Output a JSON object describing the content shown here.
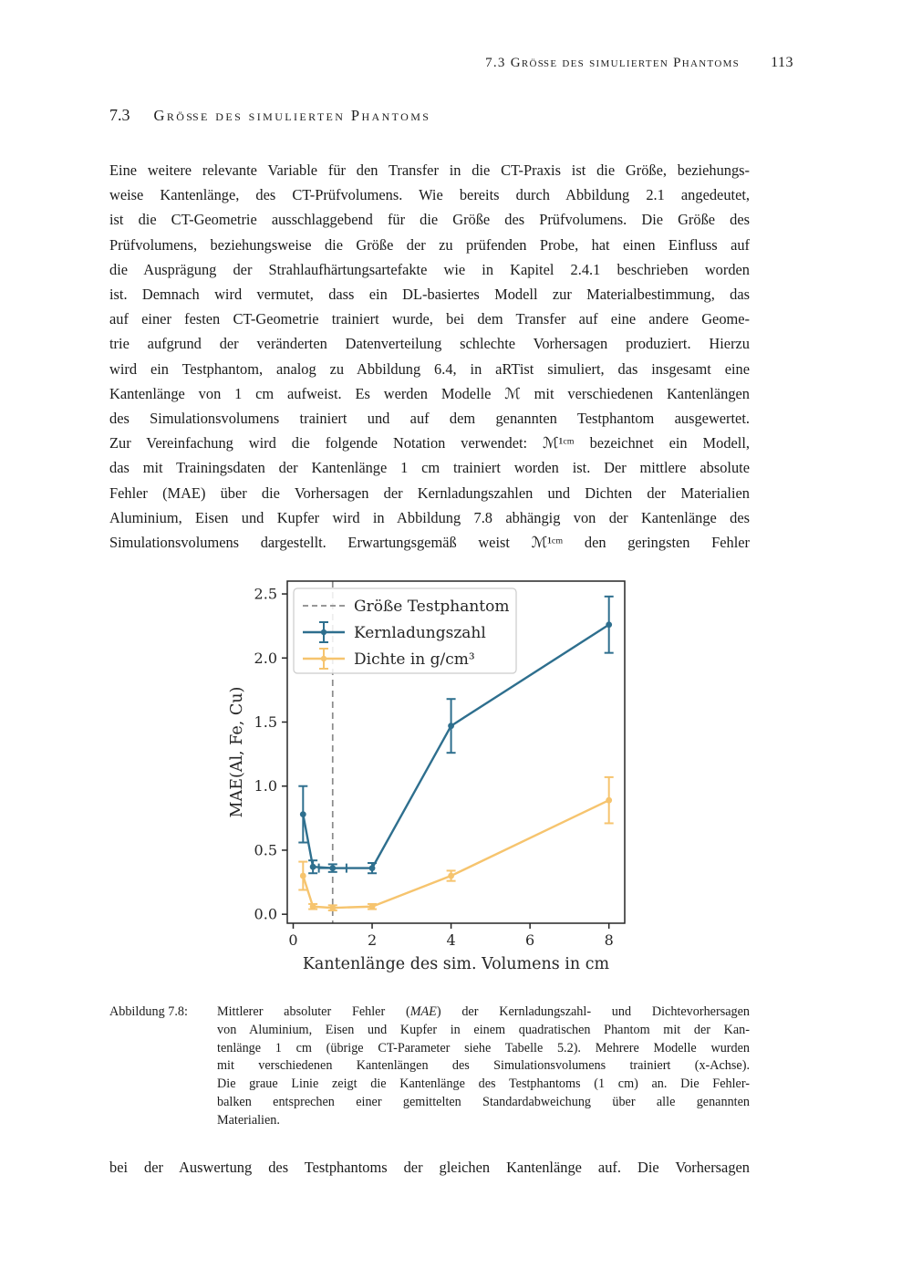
{
  "header": {
    "section_label": "7.3 Größe des simulierten Phantoms",
    "page_number": "113"
  },
  "section_heading": {
    "number": "7.3",
    "title": "Größe des simulierten Phantoms"
  },
  "paragraph_lines": [
    "Eine weitere relevante Variable für den Transfer in die CT-Praxis ist die Größe, beziehungs-",
    "weise Kantenlänge, des CT-Prüfvolumens. Wie bereits durch Abbildung 2.1 angedeutet,",
    "ist die CT-Geometrie ausschlaggebend für die Größe des Prüfvolumens. Die Größe des",
    "Prüfvolumens, beziehungsweise die Größe der zu prüfenden Probe, hat einen Einfluss auf",
    "die Ausprägung der Strahlaufhärtungsartefakte wie in Kapitel 2.4.1 beschrieben worden",
    "ist. Demnach wird vermutet, dass ein DL-basiertes Modell zur Materialbestimmung, das",
    "auf einer festen CT-Geometrie trainiert wurde, bei dem Transfer auf eine andere Geome-",
    "trie aufgrund der veränderten Datenverteilung schlechte Vorhersagen produziert. Hierzu",
    "wird ein Testphantom, analog zu Abbildung 6.4, in aRTist simuliert, das insgesamt eine",
    "Kantenlänge von 1 cm aufweist. Es werden Modelle ℳ mit verschiedenen Kantenlängen",
    "des Simulationsvolumens trainiert und auf dem genannten Testphantom ausgewertet.",
    "Zur Vereinfachung wird die folgende Notation verwendet: ℳ¹ᶜᵐ bezeichnet ein Modell,",
    "das mit Trainingsdaten der Kantenlänge 1 cm trainiert worden ist. Der mittlere absolute",
    "Fehler (MAE) über die Vorhersagen der Kernladungszahlen und Dichten der Materialien",
    "Aluminium, Eisen und Kupfer wird in Abbildung 7.8 abhängig von der Kantenlänge des",
    "Simulationsvolumens dargestellt. Erwartungsgemäß weist ℳ¹ᶜᵐ den geringsten Fehler"
  ],
  "figure": {
    "caption_label": "Abbildung 7.8:",
    "caption_line1": {
      "pre": "Mittlerer absoluter Fehler (",
      "italic": "MAE",
      "post": ") der Kernladungszahl- und Dichtevorhersagen"
    },
    "caption_lines": [
      "von Aluminium, Eisen und Kupfer in einem quadratischen Phantom mit der Kan-",
      "tenlänge 1 cm (übrige CT-Parameter siehe Tabelle 5.2). Mehrere Modelle wurden",
      "mit verschiedenen Kantenlängen des Simulationsvolumens trainiert (x-Achse).",
      "Die graue Linie zeigt die Kantenlänge des Testphantoms (1 cm) an. Die Fehler-",
      "balken entsprechen einer gemittelten Standardabweichung über alle genannten",
      "Materialien."
    ]
  },
  "closing_line": "bei der Auswertung des Testphantoms der gleichen Kantenlänge auf. Die Vorhersagen",
  "chart_data": {
    "type": "line",
    "xlabel": "Kantenlänge des sim. Volumens in cm",
    "ylabel": "MAE(Al, Fe, Cu)",
    "xlim": [
      -0.15,
      8.4
    ],
    "ylim": [
      -0.07,
      2.6
    ],
    "xtick_vals": [
      0,
      2,
      4,
      6,
      8
    ],
    "xtick_labels": [
      "0",
      "2",
      "4",
      "6",
      "8"
    ],
    "ytick_vals": [
      0.0,
      0.5,
      1.0,
      1.5,
      2.0,
      2.5
    ],
    "ytick_labels": [
      "0.0",
      "0.5",
      "1.0",
      "1.5",
      "2.0",
      "2.5"
    ],
    "grid": false,
    "vline": {
      "x": 1,
      "color": "#8a8a8a",
      "style": "dashed",
      "label": "Größe Testphantom"
    },
    "series": [
      {
        "name": "Kernladungszahl",
        "color": "#2e6f8e",
        "x": [
          0.25,
          0.5,
          1,
          2,
          4,
          8
        ],
        "y": [
          0.78,
          0.37,
          0.36,
          0.36,
          1.47,
          2.26
        ],
        "yerr": [
          0.22,
          0.05,
          0.03,
          0.04,
          0.21,
          0.22
        ],
        "xerr": [
          0,
          0,
          0.35,
          0,
          0,
          0
        ]
      },
      {
        "name": "Dichte in g/cm³",
        "color": "#f6c46e",
        "x": [
          0.25,
          0.5,
          1,
          2,
          4,
          8
        ],
        "y": [
          0.3,
          0.06,
          0.05,
          0.06,
          0.3,
          0.89
        ],
        "yerr": [
          0.11,
          0.02,
          0.02,
          0.02,
          0.04,
          0.18
        ],
        "xerr": [
          0,
          0,
          0,
          0,
          0,
          0
        ]
      }
    ],
    "legend": {
      "position": "upper-left",
      "entries": [
        {
          "label": "Größe Testphantom",
          "type": "vline"
        },
        {
          "label": "Kernladungszahl",
          "type": "series",
          "series": 0
        },
        {
          "label": "Dichte in g/cm³",
          "type": "series",
          "series": 1
        }
      ]
    }
  }
}
